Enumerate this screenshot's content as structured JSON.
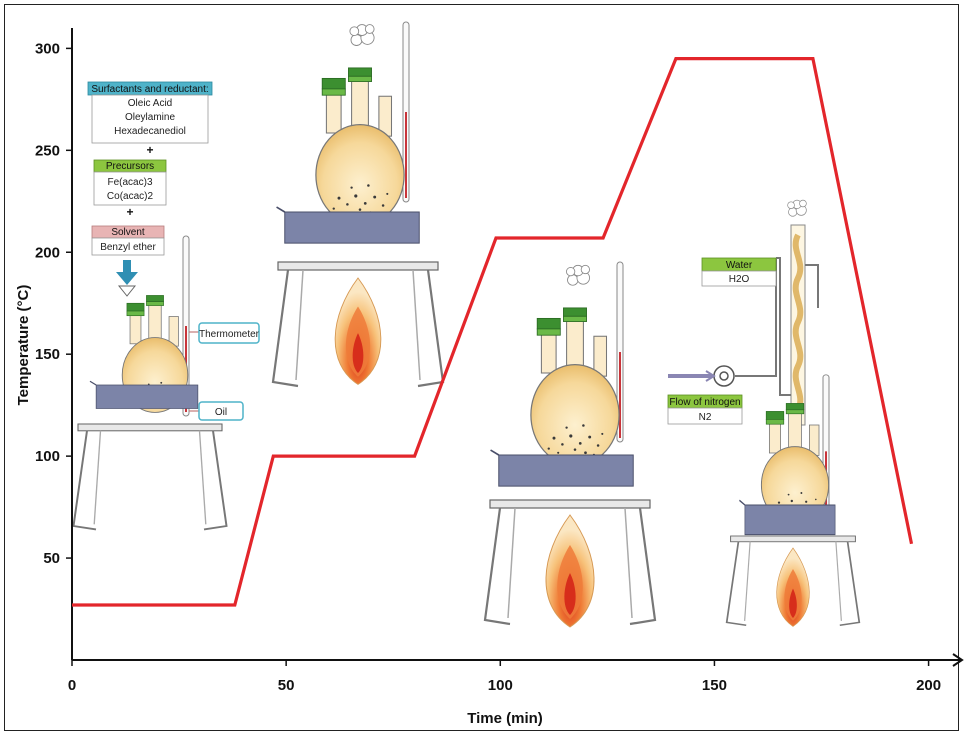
{
  "chart_data": {
    "type": "line",
    "xlabel": "Time (min)",
    "ylabel": "Temperature (°C)",
    "xlim": [
      0,
      205
    ],
    "ylim": [
      0,
      310
    ],
    "x_ticks": [
      "0",
      "50",
      "100",
      "150",
      "200"
    ],
    "y_ticks": [
      "50",
      "100",
      "150",
      "200",
      "250",
      "300"
    ],
    "x_tick_values": [
      0,
      50,
      100,
      150,
      200
    ],
    "y_tick_values": [
      50,
      100,
      150,
      200,
      250,
      300
    ],
    "series": [
      {
        "color": "#e3262b",
        "x": [
          0,
          38,
          47,
          80,
          99,
          124,
          141,
          173,
          196
        ],
        "y": [
          27,
          27,
          100,
          100,
          207,
          207,
          295,
          295,
          57
        ]
      }
    ]
  },
  "reagents": {
    "surfactants_header": "Surfactants and reductant:",
    "surfactants": [
      "Oleic Acid",
      "Oleylamine",
      "Hexadecanediol"
    ],
    "plus1": "+",
    "precursors_header": "Precursors",
    "precursors": [
      "Fe(acac)3",
      "Co(acac)2"
    ],
    "plus2": "+",
    "solvent_header": "Solvent",
    "solvent": "Benzyl ether"
  },
  "labels": {
    "thermometer": "Thermometer",
    "oil": "Oil",
    "water_header": "Water",
    "water_value": "H2O",
    "nitrogen_header": "Flow of nitrogen",
    "nitrogen_value": "N2"
  },
  "colors": {
    "line": "#e3262b",
    "cyan_header": "#4fb3c9",
    "green_header": "#8cc63f",
    "pink_header": "#e8b4b4",
    "flask_fill": "#f7dba0",
    "bath": "#7c84a8",
    "stopper": "#4a9a3a"
  }
}
